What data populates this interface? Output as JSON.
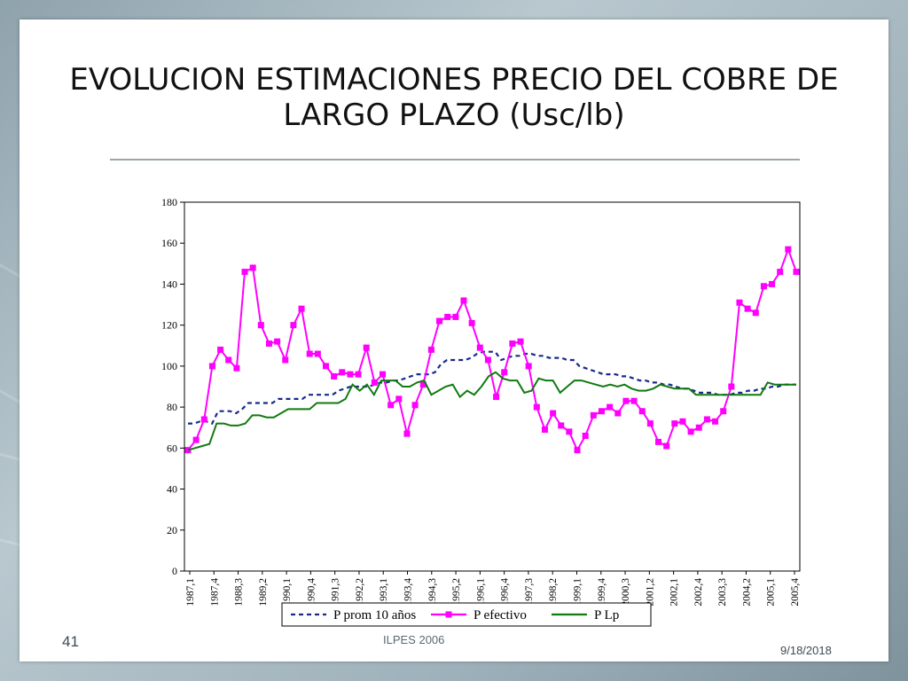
{
  "slide": {
    "title_line1": "EVOLUCION ESTIMACIONES PRECIO DEL COBRE DE",
    "title_line2": "LARGO PLAZO (Usc/lb)",
    "page_number": "41",
    "footer_center": "ILPES 2006",
    "date": "9/18/2018"
  },
  "colors": {
    "p_prom": "#1a2a8c",
    "p_efectivo": "#ff00ff",
    "p_lp": "#117a11"
  },
  "chart_data": {
    "type": "line",
    "title": "",
    "xlabel": "",
    "ylabel": "",
    "ylim": [
      0,
      180
    ],
    "yticks": [
      0,
      20,
      40,
      60,
      80,
      100,
      120,
      140,
      160,
      180
    ],
    "grid": false,
    "legend_position": "bottom",
    "x_tick_labels": [
      "1987,1",
      "1987,4",
      "1988,3",
      "1989,2",
      "1990,1",
      "1990,4",
      "1991,3",
      "1992,2",
      "1993,1",
      "1993,4",
      "1994,3",
      "1995,2",
      "1996,1",
      "1996,4",
      "1997,3",
      "1998,2",
      "1999,1",
      "1999,4",
      "2000,3",
      "2001,2",
      "2002,1",
      "2002,4",
      "2003,3",
      "2004,2",
      "2005,1",
      "2005,4"
    ],
    "series": [
      {
        "name": "P prom 10 años",
        "style": "dashed",
        "values": [
          72,
          72,
          73,
          73,
          72,
          78,
          78,
          78,
          77,
          79,
          82,
          82,
          82,
          82,
          82,
          84,
          84,
          84,
          84,
          84,
          86,
          86,
          86,
          86,
          86,
          88,
          89,
          90,
          90,
          90,
          90,
          91,
          92,
          92,
          93,
          93,
          94,
          95,
          96,
          96,
          96,
          97,
          101,
          103,
          103,
          103,
          103,
          104,
          106,
          107,
          107,
          107,
          103,
          104,
          105,
          105,
          106,
          106,
          105,
          105,
          104,
          104,
          104,
          103,
          103,
          100,
          99,
          98,
          97,
          96,
          96,
          96,
          95,
          95,
          94,
          93,
          93,
          92,
          92,
          91,
          91,
          90,
          89,
          89,
          88,
          87,
          87,
          87,
          86,
          86,
          86,
          87,
          87,
          88,
          88,
          89,
          89,
          90,
          90,
          91,
          91,
          91
        ]
      },
      {
        "name": "P efectivo",
        "style": "line-with-square-markers",
        "values": [
          59,
          64,
          74,
          100,
          108,
          103,
          99,
          146,
          148,
          120,
          111,
          112,
          103,
          120,
          128,
          106,
          106,
          100,
          95,
          97,
          96,
          96,
          109,
          92,
          96,
          81,
          84,
          67,
          81,
          91,
          108,
          122,
          124,
          124,
          132,
          121,
          109,
          103,
          85,
          97,
          111,
          112,
          100,
          80,
          69,
          77,
          71,
          68,
          59,
          66,
          76,
          78,
          80,
          77,
          83,
          83,
          78,
          72,
          63,
          61,
          72,
          73,
          68,
          70,
          74,
          73,
          78,
          90,
          131,
          128,
          126,
          139,
          140,
          146,
          157,
          146
        ]
      },
      {
        "name": "P Lp",
        "style": "solid",
        "values": [
          59,
          60,
          61,
          62,
          72,
          72,
          71,
          71,
          72,
          76,
          76,
          75,
          75,
          77,
          79,
          79,
          79,
          79,
          82,
          82,
          82,
          82,
          84,
          91,
          88,
          91,
          86,
          93,
          93,
          93,
          90,
          90,
          92,
          93,
          86,
          88,
          90,
          91,
          85,
          88,
          86,
          90,
          95,
          97,
          94,
          93,
          93,
          87,
          88,
          94,
          93,
          93,
          87,
          90,
          93,
          93,
          92,
          91,
          90,
          91,
          90,
          91,
          89,
          88,
          88,
          89,
          91,
          90,
          89,
          89,
          89,
          86,
          86,
          86,
          86,
          86,
          86,
          86,
          86,
          86,
          86,
          92,
          91,
          91,
          91,
          91
        ]
      }
    ]
  }
}
